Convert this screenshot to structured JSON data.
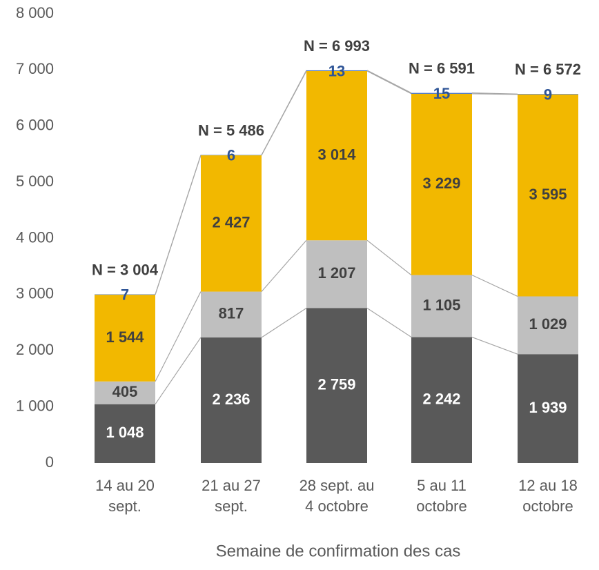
{
  "chart_data": {
    "type": "stacked_bar",
    "x_label": "Semaine de confirmation des cas",
    "categories": [
      [
        "14 au 20",
        "sept."
      ],
      [
        "21 au 27",
        "sept."
      ],
      [
        "28 sept. au",
        "4 octobre"
      ],
      [
        "5 au 11",
        "octobre"
      ],
      [
        "12 au 18",
        "octobre"
      ]
    ],
    "series": [
      {
        "color": "#595959",
        "label_color": "#ffffff",
        "values": [
          1048,
          2236,
          2759,
          2242,
          1939
        ],
        "value_labels": [
          "1 048",
          "2 236",
          "2 759",
          "2 242",
          "1 939"
        ]
      },
      {
        "color": "#bfbfbf",
        "label_color": "#404040",
        "values": [
          405,
          817,
          1207,
          1105,
          1029
        ],
        "value_labels": [
          "405",
          "817",
          "1 207",
          "1 105",
          "1 029"
        ]
      },
      {
        "color": "#f2b800",
        "label_color": "#404040",
        "values": [
          1544,
          2427,
          3014,
          3229,
          3595
        ],
        "value_labels": [
          "1 544",
          "2 427",
          "3 014",
          "3 229",
          "3 595"
        ]
      },
      {
        "color": "#4472c4",
        "label_color": "#2f5597",
        "values": [
          7,
          6,
          13,
          15,
          9
        ]
      }
    ],
    "totals": [
      3004,
      5486,
      6993,
      6591,
      6572
    ],
    "total_labels": [
      "N = 3 004",
      "N = 5 486",
      "N = 6 993",
      "N = 6 591",
      "N = 6 572"
    ],
    "ylim": [
      0,
      8000
    ],
    "yticks": [
      0,
      {
        "value": 1000,
        "label": "1 000"
      },
      {
        "value": 2000,
        "label": "2 000"
      },
      {
        "value": 3000,
        "label": "3 000"
      },
      {
        "value": 4000,
        "label": "4 000"
      },
      {
        "value": 5000,
        "label": "5 000"
      },
      {
        "value": 6000,
        "label": "6 000"
      },
      {
        "value": 7000,
        "label": "7 000"
      },
      {
        "value": 8000,
        "label": "8 000"
      }
    ],
    "connector_lines": true,
    "grid": false
  }
}
